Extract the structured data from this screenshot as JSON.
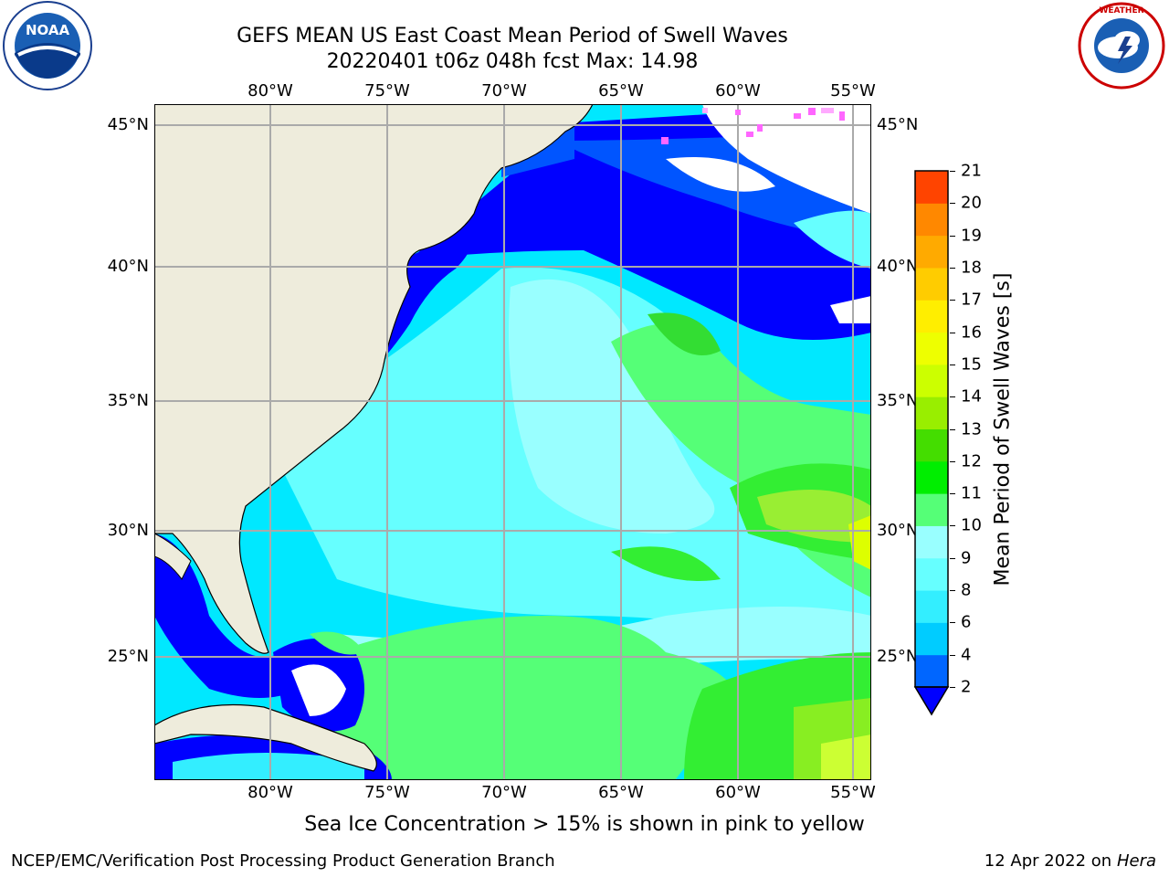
{
  "header": {
    "title_line1": "GEFS MEAN US East Coast Mean Period of Swell Waves",
    "title_line2": "20220401 t06z 048h fcst   Max: 14.98"
  },
  "logos": {
    "left": {
      "icon": "noaa-logo",
      "text": "NOAA"
    },
    "right": {
      "icon": "national-weather-service-logo",
      "text": "NATIONAL WEATHER SERVICE"
    }
  },
  "map": {
    "lon_labels": [
      "80°W",
      "75°W",
      "70°W",
      "65°W",
      "60°W",
      "55°W"
    ],
    "lat_labels": [
      "45°N",
      "40°N",
      "35°N",
      "30°N",
      "25°N"
    ],
    "grid": true,
    "land_color": "#eeecdc",
    "coastline_color": "#000000",
    "ice_colors": [
      "#ff66ff",
      "#ffff66"
    ]
  },
  "colorbar": {
    "label": "Mean Period of Swell Waves [s]",
    "ticks": [
      "2",
      "4",
      "6",
      "8",
      "9",
      "10",
      "11",
      "12",
      "13",
      "14",
      "15",
      "16",
      "17",
      "18",
      "19",
      "20",
      "21"
    ],
    "colors": [
      "#0066ff",
      "#00ccff",
      "#33eeff",
      "#66ffff",
      "#99ffff",
      "#55ff77",
      "#00ee00",
      "#44dd00",
      "#99ee00",
      "#ccff00",
      "#eeff00",
      "#ffee00",
      "#ffcc00",
      "#ffaa00",
      "#ff8800",
      "#ff4400",
      "#ff0000"
    ],
    "under_color": "#0000ff"
  },
  "footer": {
    "ice_note": "Sea Ice Concentration > 15% is shown in pink to yellow",
    "left": "NCEP/EMC/Verification Post Processing Product Generation Branch",
    "right_date": "12 Apr 2022 on",
    "right_machine": "Hera"
  }
}
